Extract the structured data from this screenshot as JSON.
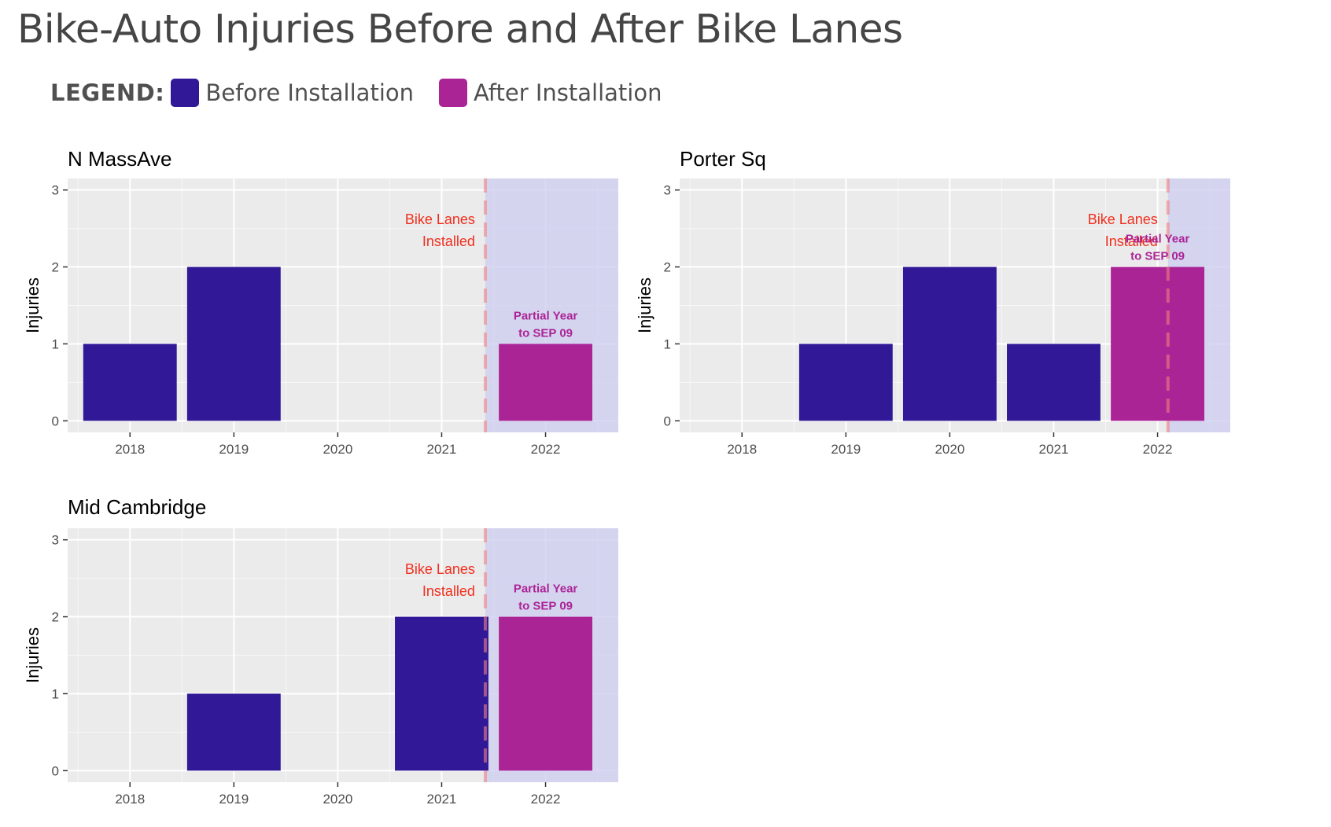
{
  "title": "Bike-Auto Injuries Before and After Bike Lanes",
  "legend": {
    "label": "LEGEND:",
    "items": [
      {
        "name": "Before Installation",
        "color": "#311896"
      },
      {
        "name": "After Installation",
        "color": "#AB2496"
      }
    ]
  },
  "colors": {
    "before": "#311896",
    "after": "#AB2496",
    "panel_bg": "#EBEBEB",
    "shade": "#CCCCF0",
    "install_line": "#F08080",
    "install_text": "#F0301E",
    "partial_text": "#AB2496"
  },
  "chart_data": [
    {
      "type": "bar",
      "title": "N MassAve",
      "categories": [
        "2018",
        "2019",
        "2020",
        "2021",
        "2022"
      ],
      "values": [
        1,
        2,
        0,
        0,
        1
      ],
      "series_by_bar": [
        "before",
        "before",
        "before",
        "before",
        "after"
      ],
      "ylabel": "Injuries",
      "xlabel": "",
      "yticks": [
        "0",
        "1",
        "2",
        "3"
      ],
      "ylim": [
        -0.15,
        3.15
      ],
      "install_position": 4.42,
      "install_label": [
        "Bike Lanes",
        "Installed"
      ],
      "partial_label": [
        "Partial Year",
        "to SEP 09"
      ]
    },
    {
      "type": "bar",
      "title": "Porter Sq",
      "categories": [
        "2018",
        "2019",
        "2020",
        "2021",
        "2022"
      ],
      "values": [
        0,
        1,
        2,
        1,
        2
      ],
      "series_by_bar": [
        "before",
        "before",
        "before",
        "before",
        "after"
      ],
      "ylabel": "Injuries",
      "xlabel": "",
      "yticks": [
        "0",
        "1",
        "2",
        "3"
      ],
      "ylim": [
        -0.15,
        3.15
      ],
      "install_position": 5.1,
      "install_label": [
        "Bike Lanes",
        "Installed"
      ],
      "partial_label": [
        "Partial Year",
        "to SEP 09"
      ]
    },
    {
      "type": "bar",
      "title": "Mid Cambridge",
      "categories": [
        "2018",
        "2019",
        "2020",
        "2021",
        "2022"
      ],
      "values": [
        0,
        1,
        0,
        2,
        2
      ],
      "series_by_bar": [
        "before",
        "before",
        "before",
        "before",
        "after"
      ],
      "ylabel": "Injuries",
      "xlabel": "",
      "yticks": [
        "0",
        "1",
        "2",
        "3"
      ],
      "ylim": [
        -0.15,
        3.15
      ],
      "install_position": 4.42,
      "install_label": [
        "Bike Lanes",
        "Installed"
      ],
      "partial_label": [
        "Partial Year",
        "to SEP 09"
      ]
    }
  ]
}
